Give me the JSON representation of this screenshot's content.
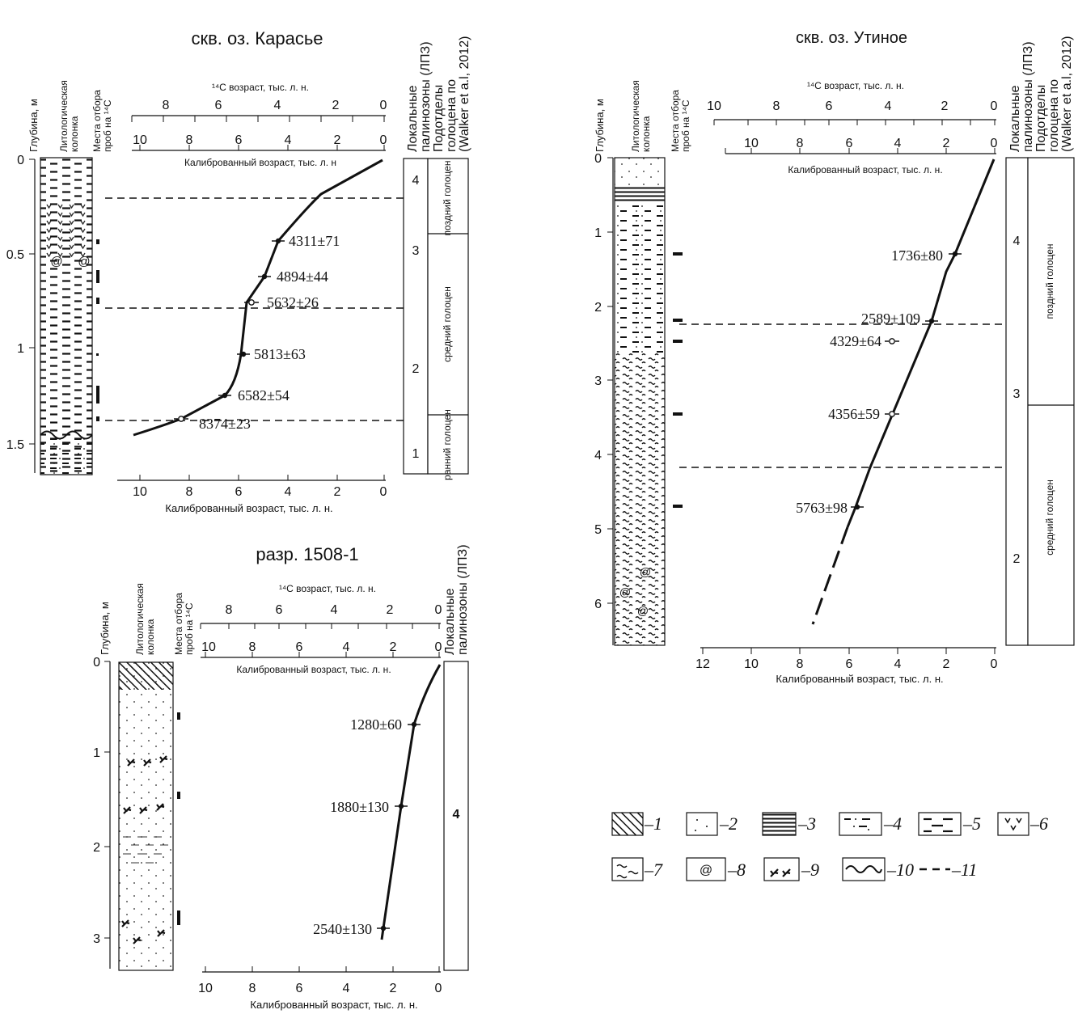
{
  "panels": [
    {
      "id": "karasye",
      "title": "скв. оз. Карасье",
      "col_depth_label": "Глубина, м",
      "col_lith_label_1": "Литологическая",
      "col_lith_label_2": "колонка",
      "col_samples_label_1": "Места отбора",
      "col_samples_label_2": "проб на ¹⁴C",
      "col_zones_label_1": "Локальные",
      "col_zones_label_2": "палинозоны (ЛПЗ)",
      "col_holo_label_1": "Подотделы",
      "col_holo_label_2": "голоцена по",
      "col_holo_label_3": "(Walker et a.l, 2012)",
      "c14_axis_label": "¹⁴C возраст, тыс. л. н.",
      "cal_axis_label": "Калиброванный возраст, тыс. л. н",
      "bottom_axis_label": "Калиброванный возраст, тыс. л. н.",
      "depth_ticks": [
        "0",
        "0.5",
        "1",
        "1.5"
      ],
      "c14_ticks": [
        "8",
        "6",
        "4",
        "2",
        "0"
      ],
      "cal_ticks": [
        "10",
        "8",
        "6",
        "4",
        "2",
        "0"
      ],
      "bottom_ticks": [
        "10",
        "8",
        "6",
        "4",
        "2",
        "0"
      ],
      "dates": [
        "4311±71",
        "4894±44",
        "5632±26",
        "5813±63",
        "6582±54",
        "8374±23"
      ],
      "zones": [
        "4",
        "3",
        "2",
        "1"
      ],
      "holocene": [
        "поздний голоцен",
        "средний голоцен",
        "ранний голоцен"
      ]
    },
    {
      "id": "utinoe",
      "title": "скв. оз. Утиное",
      "col_depth_label": "Глубина, м",
      "col_lith_label_1": "Литологическая",
      "col_lith_label_2": "колонка",
      "col_samples_label_1": "Места отбора",
      "col_samples_label_2": "проб на ¹⁴C",
      "col_zones_label_1": "Локальные",
      "col_zones_label_2": "палинозоны (ЛПЗ)",
      "col_holo_label_1": "Подотделы",
      "col_holo_label_2": "голоцена по",
      "col_holo_label_3": "(Walker et a.l, 2012)",
      "c14_axis_label": "¹⁴C возраст, тыс. л. н.",
      "cal_axis_label": "Калиброванный возраст, тыс. л. н.",
      "bottom_axis_label": "Калиброванный возраст, тыс. л. н.",
      "depth_ticks": [
        "0",
        "1",
        "2",
        "3",
        "4",
        "5",
        "6"
      ],
      "c14_ticks": [
        "10",
        "8",
        "6",
        "4",
        "2",
        "0"
      ],
      "cal_ticks": [
        "10",
        "8",
        "6",
        "4",
        "2",
        "0"
      ],
      "bottom_ticks": [
        "12",
        "10",
        "8",
        "6",
        "4",
        "2",
        "0"
      ],
      "dates": [
        "1736±80",
        "2589±109",
        "4329±64",
        "4356±59",
        "5763±98"
      ],
      "zones": [
        "4",
        "3",
        "2"
      ],
      "holocene": [
        "поздний голоцен",
        "средний голоцен"
      ]
    },
    {
      "id": "razr",
      "title": "разр. 1508-1",
      "col_depth_label": "Глубина, м",
      "col_lith_label_1": "Литологическая",
      "col_lith_label_2": "колонка",
      "col_samples_label_1": "Места отбора",
      "col_samples_label_2": "проб на ¹⁴C",
      "col_zones_label_1": "Локальные",
      "col_zones_label_2": "палинозоны (ЛПЗ)",
      "c14_axis_label": "¹⁴C возраст, тыс. л. н.",
      "cal_axis_label": "Калиброванный возраст, тыс. л. н.",
      "bottom_axis_label": "Калиброванный возраст, тыс. л. н.",
      "depth_ticks": [
        "0",
        "1",
        "2",
        "3"
      ],
      "c14_ticks": [
        "8",
        "6",
        "4",
        "2",
        "0"
      ],
      "cal_ticks": [
        "10",
        "8",
        "6",
        "4",
        "2",
        "0"
      ],
      "bottom_ticks": [
        "10",
        "8",
        "6",
        "4",
        "2",
        "0"
      ],
      "dates": [
        "1280±60",
        "1880±130",
        "2540±130"
      ],
      "zones": [
        "4"
      ]
    }
  ],
  "legend": [
    "–1",
    "–2",
    "–3",
    "–4",
    "–5",
    "–6",
    "–7",
    "–8",
    "–9",
    "–10",
    "–11"
  ],
  "legend_patterns": [
    "hatch-diagonal",
    "dots-sand",
    "horizontal-lines",
    "dash-dot-silt",
    "dashes-clay",
    "v-peat",
    "tilde-sapropel",
    "shell-spiral",
    "plant-remains",
    "wavy-boundary",
    "dashed-line"
  ],
  "chart_data": [
    {
      "type": "line",
      "title": "скв. оз. Карасье",
      "xlabel": "Калиброванный возраст, тыс. л. н.",
      "ylabel": "Глубина, м",
      "xlim": [
        10.5,
        0
      ],
      "ylim": [
        0,
        1.65
      ],
      "series": [
        {
          "x": [
            10.2,
            8.4,
            6.6,
            6.1,
            5.9,
            5.55,
            5.0,
            4.5,
            3.8,
            2.9,
            0
          ],
          "y": [
            1.45,
            1.38,
            1.25,
            1.17,
            1.05,
            0.76,
            0.63,
            0.47,
            0.35,
            0.2,
            0.0
          ]
        }
      ],
      "points": [
        {
          "label": "4311±71",
          "x": 4.5,
          "y": 0.47,
          "marker": "filled"
        },
        {
          "label": "4894±44",
          "x": 5.0,
          "y": 0.63,
          "marker": "filled"
        },
        {
          "label": "5632±26",
          "x": 5.4,
          "y": 0.76,
          "marker": "open"
        },
        {
          "label": "5813±63",
          "x": 5.9,
          "y": 1.05,
          "marker": "filled"
        },
        {
          "label": "6582±54",
          "x": 6.6,
          "y": 1.25,
          "marker": "filled"
        },
        {
          "label": "8374±23",
          "x": 8.4,
          "y": 1.38,
          "marker": "open"
        }
      ],
      "zone_boundaries_depth": [
        0.22,
        0.8,
        1.38
      ]
    },
    {
      "type": "line",
      "title": "скв. оз. Утиное",
      "xlabel": "Калиброванный возраст, тыс. л. н.",
      "ylabel": "Глубина, м",
      "xlim": [
        12,
        0
      ],
      "ylim": [
        0,
        6.55
      ],
      "series": [
        {
          "x": [
            0,
            1.6,
            1.75,
            2.65,
            5.25,
            5.8,
            7.5
          ],
          "y": [
            0,
            1.3,
            1.5,
            2.2,
            4.15,
            4.7,
            6.25
          ]
        }
      ],
      "points": [
        {
          "label": "1736±80",
          "x": 1.6,
          "y": 1.3,
          "marker": "filled"
        },
        {
          "label": "2589±109",
          "x": 2.65,
          "y": 2.2,
          "marker": "filled"
        },
        {
          "label": "4329±64",
          "x": 4.3,
          "y": 2.45,
          "marker": "open"
        },
        {
          "label": "4356±59",
          "x": 4.3,
          "y": 3.45,
          "marker": "open"
        },
        {
          "label": "5763±98",
          "x": 5.8,
          "y": 4.7,
          "marker": "filled"
        }
      ],
      "zone_boundaries_depth": [
        2.25,
        4.15
      ]
    },
    {
      "type": "line",
      "title": "разр. 1508-1",
      "xlabel": "Калиброванный возраст, тыс. л. н.",
      "ylabel": "Глубина, м",
      "xlim": [
        10,
        0
      ],
      "ylim": [
        0,
        3.3
      ],
      "series": [
        {
          "x": [
            0,
            0.5,
            1.0,
            1.7,
            2.3,
            2.55,
            2.6
          ],
          "y": [
            0,
            0.3,
            0.7,
            1.6,
            2.5,
            2.9,
            3.0
          ]
        }
      ],
      "points": [
        {
          "label": "1280±60",
          "x": 1.0,
          "y": 0.7,
          "marker": "filled"
        },
        {
          "label": "1880±130",
          "x": 1.7,
          "y": 1.6,
          "marker": "filled"
        },
        {
          "label": "2540±130",
          "x": 2.55,
          "y": 2.9,
          "marker": "filled"
        }
      ]
    }
  ]
}
